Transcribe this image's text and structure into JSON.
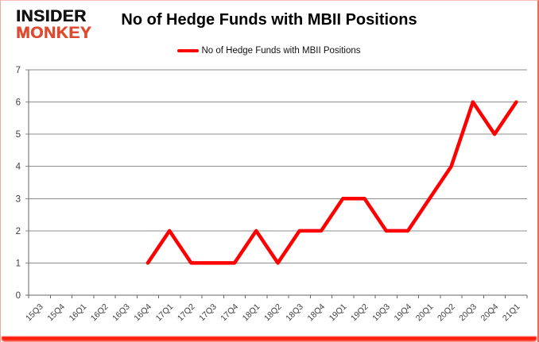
{
  "logo": {
    "line1": "INSIDER",
    "line2": "MONKEY"
  },
  "title": "No of Hedge Funds with MBII Positions",
  "legend": {
    "position": "top"
  },
  "colors": {
    "line": "#FF0000",
    "logo_red": "#DD4A2F",
    "grid": "#8E8E8E",
    "axis": "#666666",
    "label": "#3F3F3F",
    "title_text": "#000000",
    "bottom_bar": "#FF0000"
  },
  "chart_data": {
    "type": "line",
    "title": "No of Hedge Funds with MBII Positions",
    "xlabel": "",
    "ylabel": "",
    "categories": [
      "15Q3",
      "15Q4",
      "16Q1",
      "16Q2",
      "16Q3",
      "16Q4",
      "17Q1",
      "17Q2",
      "17Q3",
      "17Q4",
      "18Q1",
      "18Q2",
      "18Q3",
      "18Q4",
      "19Q1",
      "19Q2",
      "19Q3",
      "19Q4",
      "20Q1",
      "20Q2",
      "20Q3",
      "20Q4",
      "21Q1"
    ],
    "series": [
      {
        "name": "No of Hedge Funds with MBII Positions",
        "color": "#FF0000",
        "values": [
          null,
          null,
          null,
          null,
          null,
          1,
          2,
          1,
          1,
          1,
          2,
          1,
          2,
          2,
          3,
          3,
          2,
          2,
          3,
          4,
          6,
          5,
          6
        ]
      }
    ],
    "ylim": [
      0,
      7
    ],
    "yticks": [
      0,
      1,
      2,
      3,
      4,
      5,
      6,
      7
    ],
    "grid": true,
    "legend_position": "top"
  }
}
